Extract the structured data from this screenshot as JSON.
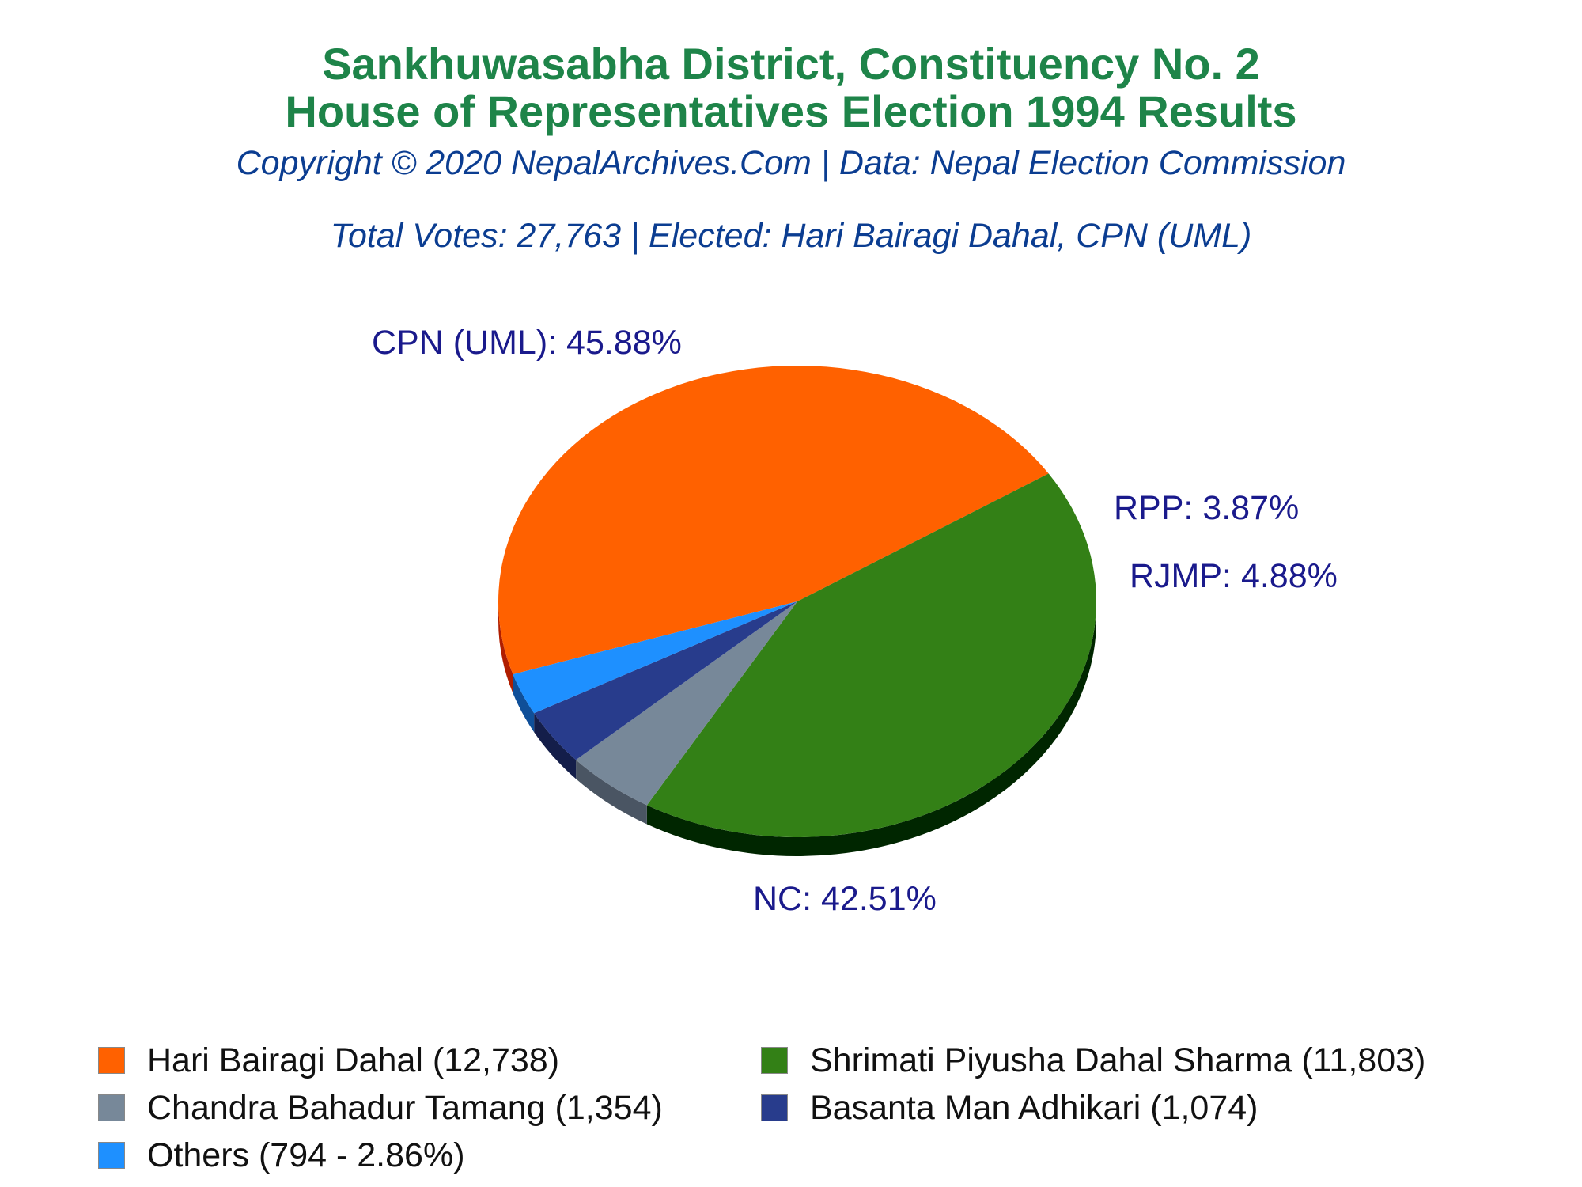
{
  "chart_data": {
    "type": "pie",
    "title": "Sankhuwasabha District, Constituency No. 2",
    "title_line2": "House of Representatives Election 1994 Results",
    "subtitle": "Copyright © 2020 NepalArchives.Com | Data: Nepal Election Commission",
    "summary": "Total Votes: 27,763 | Elected: Hari Bairagi Dahal, CPN (UML)",
    "slices": [
      {
        "party": "CPN (UML)",
        "label": "CPN (UML): 45.88%",
        "percent": 45.88,
        "color": "#ff6100"
      },
      {
        "party": "NC",
        "label": "NC: 42.51%",
        "percent": 42.51,
        "color": "#338016"
      },
      {
        "party": "RJMP",
        "label": "RJMP: 4.88%",
        "percent": 4.88,
        "color": "#778899"
      },
      {
        "party": "RPP",
        "label": "RPP: 3.87%",
        "percent": 3.87,
        "color": "#283c8c"
      },
      {
        "party": "Others",
        "label": "",
        "percent": 2.86,
        "color": "#1e90ff"
      }
    ],
    "legend": [
      {
        "text": "Hari Bairagi Dahal (12,738)",
        "color": "#ff6100"
      },
      {
        "text": "Shrimati Piyusha Dahal Sharma (11,803)",
        "color": "#338016"
      },
      {
        "text": "Chandra Bahadur Tamang (1,354)",
        "color": "#778899"
      },
      {
        "text": "Basanta Man Adhikari (1,074)",
        "color": "#283c8c"
      },
      {
        "text": "Others (794 - 2.86%)",
        "color": "#1e90ff"
      }
    ],
    "legend_placement": "bottom"
  }
}
